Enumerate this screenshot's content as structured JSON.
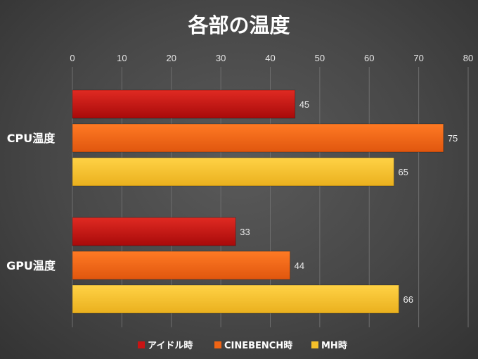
{
  "chart_data": {
    "type": "bar",
    "orientation": "horizontal",
    "title": "各部の温度",
    "categories": [
      "CPU温度",
      "GPU温度"
    ],
    "series": [
      {
        "name": "アイドル時",
        "values": [
          45,
          33
        ],
        "color": "#c81414"
      },
      {
        "name": "CINEBENCH時",
        "values": [
          75,
          44
        ],
        "color": "#f06414"
      },
      {
        "name": "MH時",
        "values": [
          65,
          66
        ],
        "color": "#f5c02a"
      }
    ],
    "xlim": [
      0,
      80
    ],
    "ticks": [
      0,
      10,
      20,
      30,
      40,
      50,
      60,
      70,
      80
    ],
    "axis_position": "top",
    "grid": true,
    "legend_position": "bottom"
  }
}
